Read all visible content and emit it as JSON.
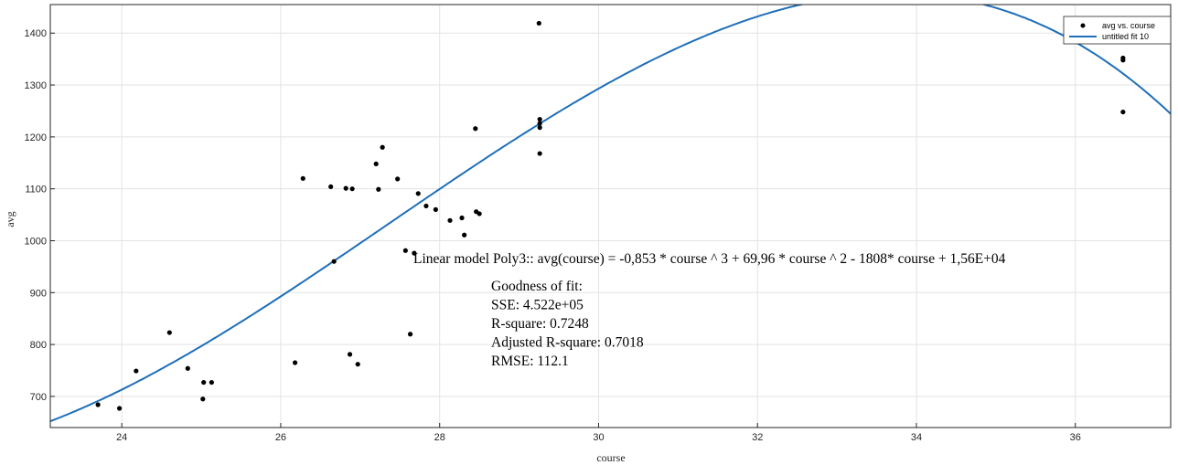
{
  "chart_data": {
    "type": "scatter",
    "xlabel": "course",
    "ylabel": "avg",
    "xlim": [
      23.1,
      37.2
    ],
    "ylim": [
      640,
      1455
    ],
    "grid": true,
    "x_ticks": [
      24,
      26,
      28,
      30,
      32,
      34,
      36
    ],
    "y_ticks": [
      700,
      800,
      900,
      1000,
      1100,
      1200,
      1300,
      1400
    ],
    "legend_position": "top-right",
    "series": [
      {
        "name": "avg vs. course",
        "kind": "points",
        "color": "#000000",
        "points": [
          [
            23.7,
            684
          ],
          [
            23.97,
            677
          ],
          [
            24.18,
            749
          ],
          [
            24.6,
            823
          ],
          [
            24.83,
            754
          ],
          [
            25.02,
            695
          ],
          [
            25.03,
            727
          ],
          [
            25.13,
            727
          ],
          [
            26.18,
            765
          ],
          [
            26.28,
            1120
          ],
          [
            26.63,
            1104
          ],
          [
            26.67,
            960
          ],
          [
            26.82,
            1101
          ],
          [
            26.87,
            781
          ],
          [
            26.9,
            1100
          ],
          [
            26.97,
            762
          ],
          [
            27.2,
            1148
          ],
          [
            27.23,
            1099
          ],
          [
            27.28,
            1180
          ],
          [
            27.47,
            1119
          ],
          [
            27.57,
            981
          ],
          [
            27.63,
            820
          ],
          [
            27.68,
            976
          ],
          [
            27.73,
            1091
          ],
          [
            27.83,
            1067
          ],
          [
            27.95,
            1060
          ],
          [
            28.13,
            1039
          ],
          [
            28.28,
            1044
          ],
          [
            28.31,
            1011
          ],
          [
            28.45,
            1216
          ],
          [
            28.46,
            1056
          ],
          [
            28.5,
            1052
          ],
          [
            29.25,
            1419
          ],
          [
            29.26,
            1234
          ],
          [
            29.26,
            1226
          ],
          [
            29.26,
            1218
          ],
          [
            29.26,
            1168
          ],
          [
            36.6,
            1352
          ],
          [
            36.6,
            1348
          ],
          [
            36.6,
            1248
          ]
        ]
      },
      {
        "name": "untitled fit 10",
        "kind": "curve",
        "color": "#1f6fba",
        "coefficients": [
          -0.853,
          69.96,
          -1808,
          15600
        ]
      }
    ],
    "annotation": {
      "equation": "Linear model Poly3:: avg(course) = -0,853 * course ^ 3 + 69,96 * course ^ 2 - 1808* course  + 1,56E+04",
      "gof_lines": [
        "Goodness of fit:",
        "SSE: 4.522e+05",
        "R-square: 0.7248",
        "Adjusted R-square: 0.7018",
        "RMSE: 112.1"
      ]
    }
  }
}
